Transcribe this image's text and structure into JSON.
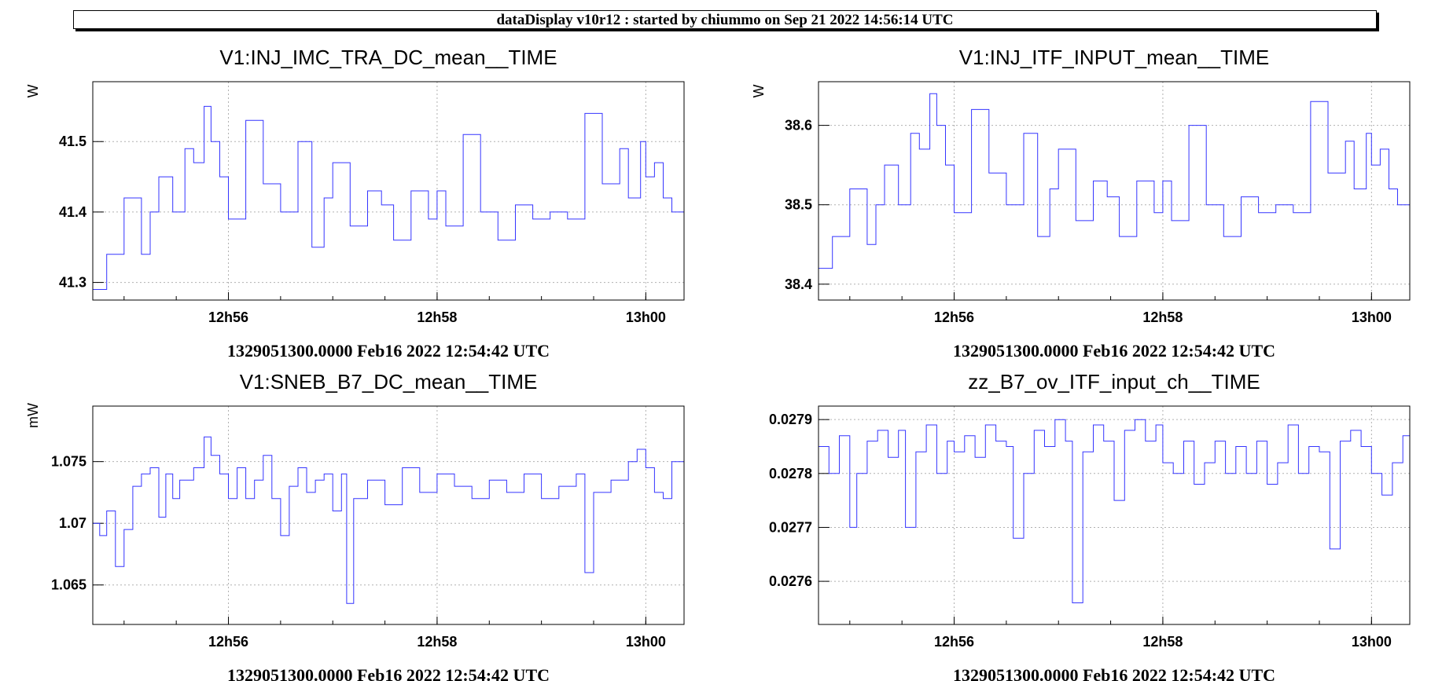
{
  "banner": {
    "text": "dataDisplay v10r12 : started by chiummo on Sep 21 2022 14:56:14 UTC"
  },
  "colors": {
    "trace": "#3535ff",
    "grid": "#b0b0b0"
  },
  "chart_data": [
    {
      "type": "line",
      "title": "V1:INJ_IMC_TRA_DC_mean__TIME",
      "ylabel": "W",
      "xlabel": "1329051300.0000 Feb16 2022 12:54:42 UTC",
      "xlim": [
        "12:54:42",
        "13:00:22"
      ],
      "x_ticks": [
        {
          "t": "12:56:00",
          "label": "12h56"
        },
        {
          "t": "12:58:00",
          "label": "12h58"
        },
        {
          "t": "13:00:00",
          "label": "13h00"
        }
      ],
      "ylim": [
        41.275,
        41.585
      ],
      "y_ticks": [
        {
          "v": 41.3,
          "label": "41.3"
        },
        {
          "v": 41.4,
          "label": "41.4"
        },
        {
          "v": 41.5,
          "label": "41.5"
        }
      ],
      "grid": true,
      "step": true,
      "series": [
        {
          "x": [
            "12:54:42",
            "12:54:50",
            "12:55:00",
            "12:55:10",
            "12:55:15",
            "12:55:20",
            "12:55:28",
            "12:55:35",
            "12:55:40",
            "12:55:46",
            "12:55:50",
            "12:55:55",
            "12:56:00",
            "12:56:10",
            "12:56:20",
            "12:56:30",
            "12:56:40",
            "12:56:48",
            "12:56:55",
            "12:57:00",
            "12:57:10",
            "12:57:20",
            "12:57:28",
            "12:57:35",
            "12:57:45",
            "12:57:55",
            "12:58:00",
            "12:58:05",
            "12:58:15",
            "12:58:25",
            "12:58:35",
            "12:58:45",
            "12:58:55",
            "12:59:05",
            "12:59:15",
            "12:59:25",
            "12:59:35",
            "12:59:45",
            "12:59:50",
            "12:59:57",
            "13:00:00",
            "13:00:05",
            "13:00:10",
            "13:00:15",
            "13:00:22"
          ],
          "y": [
            41.29,
            41.34,
            41.42,
            41.34,
            41.4,
            41.45,
            41.4,
            41.49,
            41.47,
            41.55,
            41.5,
            41.45,
            41.39,
            41.53,
            41.44,
            41.4,
            41.5,
            41.35,
            41.42,
            41.47,
            41.38,
            41.43,
            41.41,
            41.36,
            41.43,
            41.39,
            41.43,
            41.38,
            41.51,
            41.4,
            41.36,
            41.41,
            41.39,
            41.4,
            41.39,
            41.54,
            41.44,
            41.49,
            41.42,
            41.5,
            41.45,
            41.47,
            41.42,
            41.4,
            41.38
          ]
        }
      ]
    },
    {
      "type": "line",
      "title": "V1:INJ_ITF_INPUT_mean__TIME",
      "ylabel": "W",
      "xlabel": "1329051300.0000 Feb16 2022 12:54:42 UTC",
      "xlim": [
        "12:54:42",
        "13:00:22"
      ],
      "x_ticks": [
        {
          "t": "12:56:00",
          "label": "12h56"
        },
        {
          "t": "12:58:00",
          "label": "12h58"
        },
        {
          "t": "13:00:00",
          "label": "13h00"
        }
      ],
      "ylim": [
        38.38,
        38.655
      ],
      "y_ticks": [
        {
          "v": 38.4,
          "label": "38.4"
        },
        {
          "v": 38.5,
          "label": "38.5"
        },
        {
          "v": 38.6,
          "label": "38.6"
        }
      ],
      "grid": true,
      "step": true,
      "series": [
        {
          "x": [
            "12:54:42",
            "12:54:50",
            "12:55:00",
            "12:55:10",
            "12:55:15",
            "12:55:20",
            "12:55:28",
            "12:55:35",
            "12:55:40",
            "12:55:46",
            "12:55:50",
            "12:55:55",
            "12:56:00",
            "12:56:10",
            "12:56:20",
            "12:56:30",
            "12:56:40",
            "12:56:48",
            "12:56:55",
            "12:57:00",
            "12:57:10",
            "12:57:20",
            "12:57:28",
            "12:57:35",
            "12:57:45",
            "12:57:55",
            "12:58:00",
            "12:58:05",
            "12:58:15",
            "12:58:25",
            "12:58:35",
            "12:58:45",
            "12:58:55",
            "12:59:05",
            "12:59:15",
            "12:59:25",
            "12:59:35",
            "12:59:45",
            "12:59:50",
            "12:59:57",
            "13:00:00",
            "13:00:05",
            "13:00:10",
            "13:00:15",
            "13:00:22"
          ],
          "y": [
            38.42,
            38.46,
            38.52,
            38.45,
            38.5,
            38.55,
            38.5,
            38.59,
            38.57,
            38.64,
            38.6,
            38.55,
            38.49,
            38.62,
            38.54,
            38.5,
            38.59,
            38.46,
            38.52,
            38.57,
            38.48,
            38.53,
            38.51,
            38.46,
            38.53,
            38.49,
            38.53,
            38.48,
            38.6,
            38.5,
            38.46,
            38.51,
            38.49,
            38.5,
            38.49,
            38.63,
            38.54,
            38.58,
            38.52,
            38.59,
            38.55,
            38.57,
            38.52,
            38.5,
            38.48
          ]
        }
      ]
    },
    {
      "type": "line",
      "title": "V1:SNEB_B7_DC_mean__TIME",
      "ylabel": "mW",
      "xlabel": "1329051300.0000 Feb16 2022 12:54:42 UTC",
      "xlim": [
        "12:54:42",
        "13:00:22"
      ],
      "x_ticks": [
        {
          "t": "12:56:00",
          "label": "12h56"
        },
        {
          "t": "12:58:00",
          "label": "12h58"
        },
        {
          "t": "13:00:00",
          "label": "13h00"
        }
      ],
      "ylim": [
        1.0618,
        1.0795
      ],
      "y_ticks": [
        {
          "v": 1.065,
          "label": "1.065"
        },
        {
          "v": 1.07,
          "label": "1.07"
        },
        {
          "v": 1.075,
          "label": "1.075"
        }
      ],
      "grid": true,
      "step": true,
      "series": [
        {
          "x": [
            "12:54:42",
            "12:54:46",
            "12:54:50",
            "12:54:55",
            "12:55:00",
            "12:55:05",
            "12:55:10",
            "12:55:15",
            "12:55:20",
            "12:55:24",
            "12:55:28",
            "12:55:32",
            "12:55:40",
            "12:55:46",
            "12:55:50",
            "12:55:55",
            "12:56:00",
            "12:56:05",
            "12:56:10",
            "12:56:15",
            "12:56:20",
            "12:56:25",
            "12:56:30",
            "12:56:35",
            "12:56:40",
            "12:56:45",
            "12:56:50",
            "12:56:55",
            "12:57:00",
            "12:57:05",
            "12:57:08",
            "12:57:12",
            "12:57:20",
            "12:57:30",
            "12:57:40",
            "12:57:50",
            "12:58:00",
            "12:58:10",
            "12:58:20",
            "12:58:30",
            "12:58:40",
            "12:58:50",
            "12:59:00",
            "12:59:10",
            "12:59:20",
            "12:59:25",
            "12:59:30",
            "12:59:40",
            "12:59:50",
            "12:59:55",
            "13:00:00",
            "13:00:05",
            "13:00:10",
            "13:00:15",
            "13:00:22"
          ],
          "y": [
            1.07,
            1.069,
            1.071,
            1.0665,
            1.0695,
            1.073,
            1.074,
            1.0745,
            1.0705,
            1.074,
            1.072,
            1.0735,
            1.0745,
            1.077,
            1.0755,
            1.074,
            1.072,
            1.0745,
            1.072,
            1.0735,
            1.0755,
            1.072,
            1.069,
            1.073,
            1.0745,
            1.0725,
            1.0735,
            1.074,
            1.071,
            1.074,
            1.0635,
            1.072,
            1.0735,
            1.0715,
            1.0745,
            1.0725,
            1.074,
            1.073,
            1.072,
            1.0735,
            1.0725,
            1.074,
            1.072,
            1.073,
            1.074,
            1.066,
            1.0725,
            1.0735,
            1.075,
            1.076,
            1.0745,
            1.0725,
            1.072,
            1.075,
            1.0715
          ]
        }
      ]
    },
    {
      "type": "line",
      "title": "zz_B7_ov_ITF_input_ch__TIME",
      "ylabel": "",
      "xlabel": "1329051300.0000 Feb16 2022 12:54:42 UTC",
      "xlim": [
        "12:54:42",
        "13:00:22"
      ],
      "x_ticks": [
        {
          "t": "12:56:00",
          "label": "12h56"
        },
        {
          "t": "12:58:00",
          "label": "12h58"
        },
        {
          "t": "13:00:00",
          "label": "13h00"
        }
      ],
      "ylim": [
        0.02752,
        0.027925
      ],
      "y_ticks": [
        {
          "v": 0.0276,
          "label": "0.0276"
        },
        {
          "v": 0.0277,
          "label": "0.0277"
        },
        {
          "v": 0.0278,
          "label": "0.0278"
        },
        {
          "v": 0.0279,
          "label": "0.0279"
        }
      ],
      "grid": true,
      "step": true,
      "series": [
        {
          "x": [
            "12:54:42",
            "12:54:48",
            "12:54:54",
            "12:55:00",
            "12:55:04",
            "12:55:10",
            "12:55:16",
            "12:55:22",
            "12:55:28",
            "12:55:32",
            "12:55:38",
            "12:55:44",
            "12:55:50",
            "12:55:56",
            "12:56:00",
            "12:56:06",
            "12:56:12",
            "12:56:18",
            "12:56:24",
            "12:56:30",
            "12:56:34",
            "12:56:40",
            "12:56:46",
            "12:56:52",
            "12:56:58",
            "12:57:04",
            "12:57:08",
            "12:57:14",
            "12:57:20",
            "12:57:26",
            "12:57:32",
            "12:57:38",
            "12:57:44",
            "12:57:50",
            "12:57:56",
            "12:58:00",
            "12:58:06",
            "12:58:12",
            "12:58:18",
            "12:58:24",
            "12:58:30",
            "12:58:36",
            "12:58:42",
            "12:58:48",
            "12:58:54",
            "12:59:00",
            "12:59:06",
            "12:59:12",
            "12:59:18",
            "12:59:24",
            "12:59:30",
            "12:59:36",
            "12:59:42",
            "12:59:48",
            "12:59:54",
            "13:00:00",
            "13:00:06",
            "13:00:12",
            "13:00:18",
            "13:00:22"
          ],
          "y": [
            0.02785,
            0.0278,
            0.02787,
            0.0277,
            0.0278,
            0.02786,
            0.02788,
            0.02783,
            0.02788,
            0.0277,
            0.02784,
            0.02789,
            0.0278,
            0.02786,
            0.02784,
            0.02787,
            0.02783,
            0.02789,
            0.02786,
            0.02785,
            0.02768,
            0.0278,
            0.02788,
            0.02785,
            0.0279,
            0.02786,
            0.02756,
            0.02784,
            0.02789,
            0.02786,
            0.02775,
            0.02788,
            0.0279,
            0.02786,
            0.02789,
            0.02782,
            0.0278,
            0.02786,
            0.02778,
            0.02782,
            0.02786,
            0.0278,
            0.02785,
            0.0278,
            0.02786,
            0.02778,
            0.02782,
            0.02789,
            0.0278,
            0.02785,
            0.02784,
            0.02766,
            0.02786,
            0.02788,
            0.02785,
            0.0278,
            0.02776,
            0.02782,
            0.02787,
            0.02785
          ]
        }
      ]
    }
  ]
}
